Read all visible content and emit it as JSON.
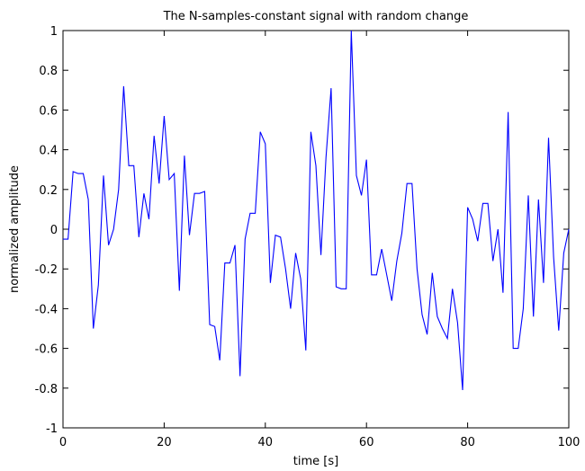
{
  "chart_data": {
    "type": "line",
    "title": "The N-samples-constant signal with random change",
    "xlabel": "time [s]",
    "ylabel": "normalized amplitude",
    "xlim": [
      0,
      100
    ],
    "ylim": [
      -1,
      1
    ],
    "xticks": [
      0,
      20,
      40,
      60,
      80,
      100
    ],
    "xtick_labels": [
      "0",
      "20",
      "40",
      "60",
      "80",
      "100"
    ],
    "yticks": [
      1,
      0.8,
      0.6,
      0.4,
      0.2,
      0,
      -0.2,
      -0.4,
      -0.6,
      -0.8,
      -1
    ],
    "ytick_labels": [
      "1",
      "0.8",
      "0.6",
      "0.4",
      "0.2",
      "0",
      "-0.2",
      "-0.4",
      "-0.6",
      "-0.8",
      "-1"
    ],
    "grid": false,
    "series_color": "#0000ff",
    "series": [
      {
        "x": [
          0,
          1,
          2,
          3,
          4,
          5,
          6,
          7,
          8,
          9,
          10,
          11,
          12,
          13,
          14,
          15,
          16,
          17,
          18,
          19,
          20,
          21,
          22,
          23,
          24,
          25,
          26,
          27,
          28,
          29,
          30,
          31,
          32,
          33,
          34,
          35,
          36,
          37,
          38,
          39,
          40,
          41,
          42,
          43,
          44,
          45,
          46,
          47,
          48,
          49,
          50,
          51,
          52,
          53,
          54,
          55,
          56,
          57,
          58,
          59,
          60,
          61,
          62,
          63,
          64,
          65,
          66,
          67,
          68,
          69,
          70,
          71,
          72,
          73,
          74,
          75,
          76,
          77,
          78,
          79,
          80,
          81,
          82,
          83,
          84,
          85,
          86,
          87,
          88,
          89,
          90,
          91,
          92,
          93,
          94,
          95,
          96,
          97,
          98,
          99,
          100
        ],
        "values": [
          -0.05,
          -0.05,
          0.29,
          0.28,
          0.28,
          0.15,
          -0.5,
          -0.28,
          0.27,
          -0.08,
          0.0,
          0.2,
          0.72,
          0.32,
          0.32,
          -0.04,
          0.18,
          0.05,
          0.47,
          0.23,
          0.57,
          0.25,
          0.28,
          -0.31,
          0.37,
          -0.03,
          0.18,
          0.18,
          0.19,
          -0.48,
          -0.49,
          -0.66,
          -0.17,
          -0.17,
          -0.08,
          -0.74,
          -0.05,
          0.08,
          0.08,
          0.49,
          0.43,
          -0.27,
          -0.03,
          -0.04,
          -0.2,
          -0.4,
          -0.12,
          -0.25,
          -0.61,
          0.49,
          0.32,
          -0.13,
          0.36,
          0.71,
          -0.29,
          -0.3,
          -0.3,
          1.0,
          0.27,
          0.17,
          0.35,
          -0.23,
          -0.23,
          -0.1,
          -0.23,
          -0.36,
          -0.16,
          -0.02,
          0.23,
          0.23,
          -0.2,
          -0.43,
          -0.53,
          -0.22,
          -0.44,
          -0.5,
          -0.55,
          -0.3,
          -0.47,
          -0.81,
          0.11,
          0.05,
          -0.06,
          0.13,
          0.13,
          -0.16,
          0.0,
          -0.32,
          0.59,
          -0.6,
          -0.6,
          -0.4,
          0.17,
          -0.44,
          0.15,
          -0.27,
          0.46,
          -0.14,
          -0.51,
          -0.12,
          0.0
        ]
      }
    ]
  }
}
